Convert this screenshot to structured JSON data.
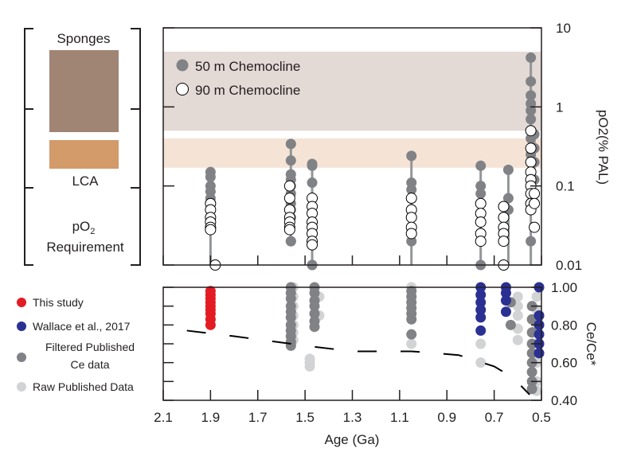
{
  "chart_data": [
    {
      "type": "scatter",
      "ylabel": "pO2(% PAL)",
      "yscale": "log",
      "ylim": [
        0.01,
        10
      ],
      "xlim": [
        2.1,
        0.5
      ],
      "yticks": [
        "10",
        "1",
        "0.1",
        "0.01"
      ],
      "bands": [
        {
          "name": "Sponges",
          "range": [
            0.5,
            5
          ],
          "color": "#e3d9d5",
          "key_color": "#a08474"
        },
        {
          "name": "LCA",
          "range": [
            0.17,
            0.4
          ],
          "color": "#f5e3d6",
          "key_color": "#d39a6a"
        }
      ],
      "bracket_label": [
        "pO",
        "2",
        "Requirement"
      ],
      "legend": [
        {
          "name": "50 m Chemocline",
          "color": "#808285"
        },
        {
          "name": "90 m Chemocline",
          "color": "#ffffff"
        }
      ],
      "series": [
        {
          "name": "50 m Chemocline",
          "groups": [
            {
              "x": 1.9,
              "y": [
                0.15,
                0.13,
                0.1,
                0.085,
                0.07
              ],
              "floor": 0.01
            },
            {
              "x": 1.56,
              "y": [
                0.34,
                0.21,
                0.14,
                0.12,
                0.1,
                0.08,
                0.06,
                0.05,
                0.04,
                0.02,
                0.02
              ]
            },
            {
              "x": 1.47,
              "y": [
                0.19,
                0.18,
                0.11,
                0.01,
                0.01
              ]
            },
            {
              "x": 1.05,
              "y": [
                0.24,
                0.11,
                0.09,
                0.02
              ],
              "floor": 0.01
            },
            {
              "x": 0.757,
              "y": [
                0.18,
                0.1,
                0.08,
                0.01
              ],
              "floor": 0.01
            },
            {
              "x": 0.64,
              "y": [
                0.16,
                0.07,
                0.05
              ],
              "floor": 0.01
            },
            {
              "x": 0.545,
              "y": [
                4.2,
                2.1,
                1.4,
                1.1,
                0.9,
                0.7,
                0.5,
                0.4,
                0.3,
                0.25,
                0.2,
                0.15,
                0.12,
                0.1,
                0.08,
                0.06,
                0.02
              ],
              "floor": 0.01
            },
            {
              "x": 0.53,
              "y": [
                0.45,
                0.3,
                0.2,
                0.12,
                0.08
              ]
            }
          ]
        },
        {
          "name": "90 m Chemocline",
          "groups": [
            {
              "x": 1.9,
              "y": [
                0.06,
                0.05,
                0.04,
                0.035,
                0.03,
                0.028
              ]
            },
            {
              "x": 1.88,
              "y": [
                0.01
              ]
            },
            {
              "x": 1.565,
              "y": [
                0.1,
                0.07,
                0.05,
                0.04,
                0.035,
                0.03,
                0.028
              ]
            },
            {
              "x": 1.47,
              "y": [
                0.07,
                0.055,
                0.045,
                0.035,
                0.03,
                0.025,
                0.02,
                0.018
              ]
            },
            {
              "x": 1.05,
              "y": [
                0.07,
                0.05,
                0.04,
                0.03,
                0.025
              ]
            },
            {
              "x": 0.757,
              "y": [
                0.06,
                0.045,
                0.035,
                0.025,
                0.02
              ]
            },
            {
              "x": 0.66,
              "y": [
                0.055,
                0.04,
                0.03,
                0.025,
                0.02,
                0.01
              ]
            },
            {
              "x": 0.545,
              "y": [
                0.5,
                0.3,
                0.2,
                0.15,
                0.12,
                0.1,
                0.08,
                0.06,
                0.05
              ]
            },
            {
              "x": 0.53,
              "y": [
                0.08,
                0.06,
                0.03
              ]
            }
          ]
        }
      ]
    },
    {
      "type": "scatter",
      "xlabel": "Age (Ga)",
      "ylabel": "Ce/Ce*",
      "xlim": [
        2.1,
        0.5
      ],
      "ylim": [
        0.4,
        1.0
      ],
      "xticks": [
        "2.1",
        "1.9",
        "1.7",
        "1.5",
        "1.3",
        "1.1",
        "0.9",
        "0.7",
        "0.5"
      ],
      "yticks": [
        "1.00",
        "0.80",
        "0.60",
        "0.40"
      ],
      "legend": [
        {
          "name": "This study",
          "color": "#e31b23"
        },
        {
          "name": "Wallace et al., 2017",
          "color": "#2b3192"
        },
        {
          "name": "Filtered Published Ce data",
          "lines": [
            "Filtered Published",
            "Ce data"
          ],
          "color": "#808285"
        },
        {
          "name": "Raw Published Data",
          "color": "#d1d3d4"
        }
      ],
      "series": [
        {
          "name": "Raw Published Data",
          "groups": [
            {
              "x": 1.55,
              "y": [
                1.0,
                0.95,
                0.9,
                0.85,
                0.8,
                0.76,
                0.72
              ]
            },
            {
              "x": 1.48,
              "y": [
                0.62,
                0.6,
                0.58
              ]
            },
            {
              "x": 1.44,
              "y": [
                0.95,
                0.85
              ]
            },
            {
              "x": 1.05,
              "y": [
                1.0,
                0.7
              ]
            },
            {
              "x": 0.757,
              "y": [
                0.7,
                0.6
              ]
            },
            {
              "x": 0.6,
              "y": [
                0.95,
                0.9,
                0.85,
                0.78,
                0.72
              ]
            },
            {
              "x": 0.52,
              "y": [
                0.95,
                0.88,
                0.8,
                0.7,
                0.6,
                0.5,
                0.45
              ]
            }
          ]
        },
        {
          "name": "Filtered Published Ce data",
          "groups": [
            {
              "x": 1.56,
              "y": [
                1.0,
                0.97,
                0.94,
                0.9,
                0.87,
                0.84,
                0.8,
                0.77,
                0.74,
                0.71,
                0.69
              ]
            },
            {
              "x": 1.46,
              "y": [
                1.0,
                0.97,
                0.93,
                0.9,
                0.86,
                0.82,
                0.79
              ]
            },
            {
              "x": 1.05,
              "y": [
                0.98,
                0.95,
                0.92,
                0.89,
                0.86,
                0.83,
                0.75
              ]
            },
            {
              "x": 0.63,
              "y": [
                0.92,
                0.8
              ]
            },
            {
              "x": 0.54,
              "y": [
                0.9,
                0.83,
                0.76,
                0.7,
                0.65,
                0.6,
                0.55,
                0.5,
                0.46
              ]
            }
          ]
        },
        {
          "name": "Wallace et al., 2017",
          "groups": [
            {
              "x": 0.757,
              "y": [
                1.0,
                0.96,
                0.92,
                0.88,
                0.84,
                0.77
              ]
            },
            {
              "x": 0.65,
              "y": [
                1.0,
                0.97,
                0.93,
                0.87
              ]
            },
            {
              "x": 0.51,
              "y": [
                1.0,
                0.85,
                0.8,
                0.75,
                0.7,
                0.65
              ]
            }
          ]
        },
        {
          "name": "This study",
          "groups": [
            {
              "x": 1.9,
              "y": [
                0.98,
                0.96,
                0.94,
                0.92,
                0.9,
                0.88,
                0.86,
                0.83,
                0.8
              ]
            }
          ]
        }
      ],
      "trend": {
        "x": [
          2.0,
          1.8,
          1.5,
          1.3,
          1.05,
          0.85,
          0.7,
          0.62,
          0.55
        ],
        "y": [
          0.77,
          0.74,
          0.69,
          0.66,
          0.66,
          0.64,
          0.58,
          0.52,
          0.43
        ]
      }
    }
  ]
}
